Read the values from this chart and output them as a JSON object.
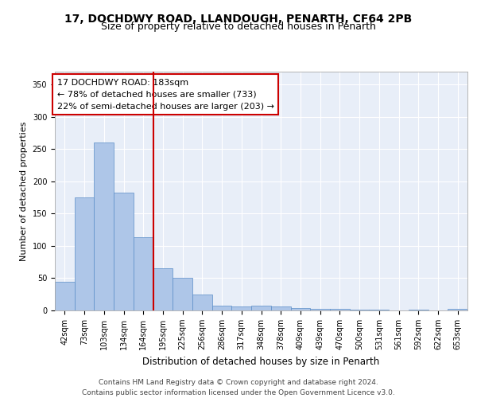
{
  "title1": "17, DOCHDWY ROAD, LLANDOUGH, PENARTH, CF64 2PB",
  "title2": "Size of property relative to detached houses in Penarth",
  "xlabel": "Distribution of detached houses by size in Penarth",
  "ylabel": "Number of detached properties",
  "categories": [
    "42sqm",
    "73sqm",
    "103sqm",
    "134sqm",
    "164sqm",
    "195sqm",
    "225sqm",
    "256sqm",
    "286sqm",
    "317sqm",
    "348sqm",
    "378sqm",
    "409sqm",
    "439sqm",
    "470sqm",
    "500sqm",
    "531sqm",
    "561sqm",
    "592sqm",
    "622sqm",
    "653sqm"
  ],
  "values": [
    44,
    175,
    260,
    183,
    113,
    65,
    50,
    25,
    8,
    6,
    8,
    6,
    4,
    3,
    2,
    1,
    1,
    0,
    1,
    0,
    2
  ],
  "bar_color": "#aec6e8",
  "bar_edge_color": "#5b8dc8",
  "vline_x": 4.5,
  "vline_color": "#cc0000",
  "annotation_text": "17 DOCHDWY ROAD: 183sqm\n← 78% of detached houses are smaller (733)\n22% of semi-detached houses are larger (203) →",
  "annotation_box_color": "#ffffff",
  "annotation_box_edge": "#cc0000",
  "ylim": [
    0,
    370
  ],
  "yticks": [
    0,
    50,
    100,
    150,
    200,
    250,
    300,
    350
  ],
  "footer_text": "Contains HM Land Registry data © Crown copyright and database right 2024.\nContains public sector information licensed under the Open Government Licence v3.0.",
  "bg_color": "#e8eef8",
  "grid_color": "#ffffff",
  "title1_fontsize": 10,
  "title2_fontsize": 9,
  "xlabel_fontsize": 8.5,
  "ylabel_fontsize": 8,
  "tick_fontsize": 7,
  "annotation_fontsize": 8,
  "footer_fontsize": 6.5
}
